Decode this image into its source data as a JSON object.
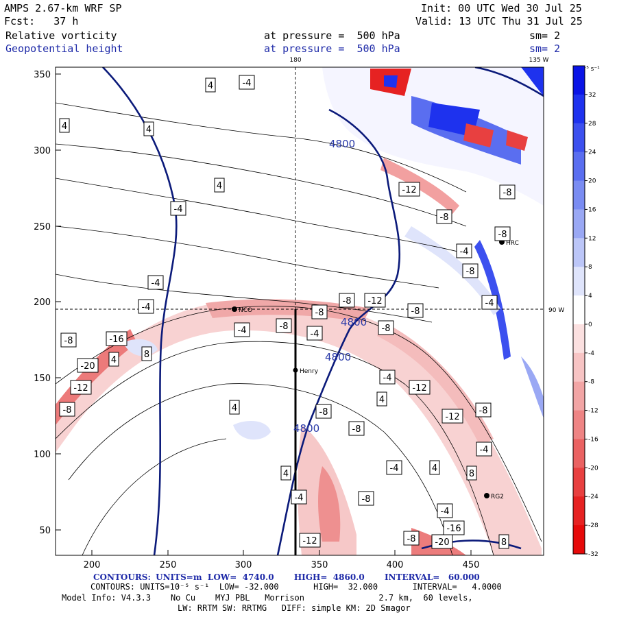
{
  "header": {
    "model_line": "AMPS 2.67-km WRF SP",
    "init_line": "Init: 00 UTC Wed 30 Jul 25",
    "fcst_line": "Fcst:   37 h",
    "valid_line": "Valid: 13 UTC Thu 31 Jul 25",
    "field1_name": "Relative vorticity",
    "field1_level": "at pressure =  500 hPa",
    "field1_sm": "sm= 2",
    "field2_name": "Geopotential height",
    "field2_level": "at pressure =  500 hPa",
    "field2_sm": "sm= 2"
  },
  "map": {
    "x_ticks": [
      "200",
      "250",
      "300",
      "350",
      "400",
      "450"
    ],
    "y_ticks": [
      "350",
      "300",
      "250",
      "200",
      "150",
      "100",
      "50"
    ],
    "lon_labels": {
      "top_180": "180",
      "top_135w": "135 W",
      "right_90w": "90 W"
    },
    "stations": [
      {
        "name": "NCO"
      },
      {
        "name": "Henry"
      },
      {
        "name": "HRC"
      },
      {
        "name": "RG2"
      }
    ],
    "height_labels": [
      "4800",
      "4800",
      "4800",
      "4800"
    ],
    "vort_labels": [
      "4",
      "-4",
      "4",
      "4",
      "4",
      "-4",
      "-8",
      "-16",
      "-20",
      "-12",
      "-8",
      "4",
      "8",
      "-4",
      "-4",
      "-8",
      "-4",
      "-8",
      "-12",
      "-8",
      "-4",
      "-8",
      "-12",
      "-4",
      "-8",
      "-8",
      "-12",
      "4",
      "4",
      "-8",
      "-4",
      "-16",
      "-12",
      "-8",
      "8",
      "-8",
      "-4",
      "4",
      "8",
      "4",
      "-4",
      "-8",
      "-8",
      "-4",
      "-8",
      "-12",
      "-8",
      "-4",
      "-8",
      "-4",
      "-20"
    ]
  },
  "colorbar": {
    "unit": "10⁻⁵ s⁻¹",
    "labels": [
      "32",
      "28",
      "24",
      "20",
      "16",
      "12",
      "8",
      "4",
      "0",
      "-4",
      "-8",
      "-12",
      "-16",
      "-20",
      "-24",
      "-28",
      "-32"
    ],
    "colors": [
      "#0a14e6",
      "#1e32ee",
      "#3c50ef",
      "#5a6ef0",
      "#7a8cf2",
      "#9aa8f4",
      "#bcc6f8",
      "#dfe4fb",
      "#ffffff",
      "#fbe0e0",
      "#f7c4c4",
      "#f2a5a5",
      "#ee8484",
      "#ea6262",
      "#e84040",
      "#e62222",
      "#e60a0a"
    ]
  },
  "footer": {
    "line1_prefix": "CONTOURS:",
    "line1": "UNITS=m  LOW=  4740.0       HIGH=  4860.0       INTERVAL=   60.000",
    "line2_prefix": "CONTOURS:",
    "line2": "UNITS=10⁻⁵ s⁻¹  LOW= -32.000       HIGH=  32.000       INTERVAL=   4.0000",
    "line3": "Model Info: V4.3.3    No Cu    MYJ PBL   Morrison               2.7 km,  60 levels,",
    "line4": "LW: RRTM SW: RRTMG   DIFF: simple KM: 2D Smagor"
  }
}
